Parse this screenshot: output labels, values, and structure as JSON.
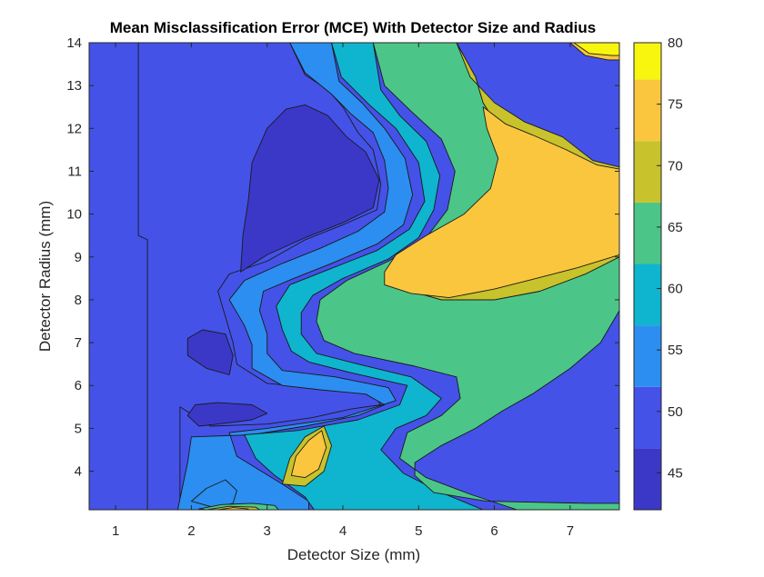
{
  "chart_data": {
    "type": "heatmap",
    "subtype": "filled-contour",
    "title": "Mean Misclassification Error (MCE) With Detector Size and Radius",
    "xlabel": "Detector Size (mm)",
    "ylabel": "Detector Radius (mm)",
    "xlim": [
      0.65,
      7.65
    ],
    "ylim": [
      3.1,
      14.0
    ],
    "x_ticks": [
      1,
      2,
      3,
      4,
      5,
      6,
      7
    ],
    "y_ticks": [
      4,
      5,
      6,
      7,
      8,
      9,
      10,
      11,
      12,
      13,
      14
    ],
    "colorbar": {
      "colormap": "parula",
      "range": [
        42,
        80
      ],
      "ticks": [
        45,
        50,
        55,
        60,
        65,
        70,
        75,
        80
      ]
    },
    "contour_levels": [
      42,
      47,
      52,
      57,
      62,
      67,
      72,
      77,
      80
    ],
    "level_colors": [
      "#3b38c8",
      "#4452e8",
      "#2c8ef0",
      "#0fb5ce",
      "#4bc688",
      "#c8c22c",
      "#fac63e",
      "#f8f60e"
    ],
    "regions": [
      {
        "level": 1,
        "points": [
          [
            1.3,
            14
          ],
          [
            1.3,
            9.5
          ],
          [
            1.42,
            9.4
          ],
          [
            1.42,
            3.1
          ],
          [
            1.85,
            3.1
          ],
          [
            1.85,
            5.5
          ],
          [
            2.25,
            5.05
          ],
          [
            3.0,
            5.1
          ],
          [
            3.6,
            5.25
          ],
          [
            4.1,
            5.45
          ],
          [
            4.5,
            5.55
          ],
          [
            4.4,
            5.8
          ],
          [
            3.6,
            5.95
          ],
          [
            3.0,
            6.05
          ],
          [
            2.6,
            6.5
          ],
          [
            2.55,
            7.0
          ],
          [
            2.45,
            7.6
          ],
          [
            2.35,
            8.2
          ],
          [
            2.5,
            8.6
          ],
          [
            3.0,
            8.9
          ],
          [
            3.5,
            9.4
          ],
          [
            4.0,
            9.75
          ],
          [
            4.45,
            10.1
          ],
          [
            4.5,
            10.7
          ],
          [
            4.4,
            11.5
          ],
          [
            4.2,
            11.9
          ],
          [
            4.0,
            12.5
          ],
          [
            3.8,
            12.9
          ],
          [
            3.5,
            13.25
          ],
          [
            3.3,
            14
          ]
        ]
      },
      {
        "level": 2,
        "points": [
          [
            3.3,
            14
          ],
          [
            3.5,
            13.3
          ],
          [
            3.85,
            12.8
          ],
          [
            4.1,
            12.35
          ],
          [
            4.4,
            11.9
          ],
          [
            4.55,
            11.25
          ],
          [
            4.6,
            10.6
          ],
          [
            4.55,
            10.05
          ],
          [
            4.2,
            9.6
          ],
          [
            3.7,
            9.2
          ],
          [
            3.2,
            8.85
          ],
          [
            2.7,
            8.45
          ],
          [
            2.5,
            8.0
          ],
          [
            2.7,
            7.4
          ],
          [
            2.8,
            6.95
          ],
          [
            2.8,
            6.4
          ],
          [
            3.2,
            6.0
          ],
          [
            3.7,
            5.9
          ],
          [
            4.3,
            5.8
          ],
          [
            4.55,
            5.55
          ],
          [
            4.2,
            5.3
          ],
          [
            3.5,
            5.05
          ],
          [
            2.8,
            4.85
          ],
          [
            2.0,
            4.8
          ],
          [
            1.95,
            4.2
          ],
          [
            1.82,
            3.1
          ],
          [
            3.55,
            3.1
          ],
          [
            3.55,
            3.3
          ],
          [
            3.2,
            3.7
          ],
          [
            2.6,
            4.35
          ],
          [
            2.5,
            4.9
          ],
          [
            3.0,
            5.0
          ],
          [
            4.0,
            5.25
          ],
          [
            4.7,
            5.65
          ],
          [
            4.6,
            5.95
          ],
          [
            3.9,
            6.2
          ],
          [
            3.2,
            6.35
          ],
          [
            3.0,
            6.75
          ],
          [
            3.0,
            7.2
          ],
          [
            2.9,
            7.75
          ],
          [
            2.95,
            8.2
          ],
          [
            3.35,
            8.5
          ],
          [
            3.85,
            8.85
          ],
          [
            4.45,
            9.3
          ],
          [
            4.8,
            9.75
          ],
          [
            4.92,
            10.45
          ],
          [
            4.82,
            11.3
          ],
          [
            4.55,
            12.0
          ],
          [
            4.25,
            12.6
          ],
          [
            3.95,
            13.1
          ],
          [
            3.85,
            14
          ]
        ]
      },
      {
        "level": 3,
        "points": [
          [
            3.85,
            14
          ],
          [
            3.98,
            13.2
          ],
          [
            4.35,
            12.55
          ],
          [
            4.7,
            12.0
          ],
          [
            5.0,
            11.2
          ],
          [
            5.08,
            10.3
          ],
          [
            4.88,
            9.65
          ],
          [
            4.45,
            9.15
          ],
          [
            3.8,
            8.7
          ],
          [
            3.3,
            8.35
          ],
          [
            3.12,
            7.85
          ],
          [
            3.2,
            7.3
          ],
          [
            3.32,
            6.8
          ],
          [
            3.55,
            6.55
          ],
          [
            4.1,
            6.3
          ],
          [
            4.85,
            6.0
          ],
          [
            4.75,
            5.55
          ],
          [
            4.2,
            5.2
          ],
          [
            3.4,
            4.95
          ],
          [
            2.7,
            4.85
          ],
          [
            2.85,
            4.3
          ],
          [
            3.1,
            3.9
          ],
          [
            3.5,
            3.4
          ],
          [
            3.62,
            3.1
          ],
          [
            5.85,
            3.1
          ],
          [
            5.3,
            3.5
          ],
          [
            4.8,
            3.95
          ],
          [
            4.5,
            4.5
          ],
          [
            4.7,
            5.0
          ],
          [
            5.1,
            5.3
          ],
          [
            5.3,
            5.7
          ],
          [
            4.9,
            6.2
          ],
          [
            4.2,
            6.5
          ],
          [
            3.65,
            6.75
          ],
          [
            3.45,
            7.2
          ],
          [
            3.45,
            7.7
          ],
          [
            3.6,
            8.1
          ],
          [
            4.0,
            8.5
          ],
          [
            4.6,
            8.95
          ],
          [
            5.0,
            9.45
          ],
          [
            5.2,
            10.1
          ],
          [
            5.28,
            10.9
          ],
          [
            5.1,
            11.7
          ],
          [
            4.75,
            12.3
          ],
          [
            4.5,
            12.9
          ],
          [
            4.4,
            14
          ]
        ]
      },
      {
        "level": 4,
        "points": [
          [
            4.4,
            14
          ],
          [
            4.55,
            13.0
          ],
          [
            4.9,
            12.4
          ],
          [
            5.3,
            11.75
          ],
          [
            5.48,
            11.0
          ],
          [
            5.38,
            10.1
          ],
          [
            5.1,
            9.45
          ],
          [
            4.6,
            8.9
          ],
          [
            4.05,
            8.45
          ],
          [
            3.7,
            8.0
          ],
          [
            3.65,
            7.5
          ],
          [
            3.75,
            7.05
          ],
          [
            4.15,
            6.75
          ],
          [
            4.95,
            6.45
          ],
          [
            5.5,
            6.2
          ],
          [
            5.55,
            5.7
          ],
          [
            5.3,
            5.3
          ],
          [
            4.85,
            4.9
          ],
          [
            4.75,
            4.3
          ],
          [
            5.1,
            3.85
          ],
          [
            5.7,
            3.45
          ],
          [
            6.3,
            3.1
          ],
          [
            7.65,
            3.1
          ],
          [
            7.65,
            3.25
          ],
          [
            7.2,
            3.25
          ],
          [
            5.9,
            3.3
          ],
          [
            5.2,
            3.5
          ],
          [
            4.95,
            3.9
          ],
          [
            4.95,
            4.2
          ],
          [
            5.3,
            4.6
          ],
          [
            5.75,
            5.0
          ],
          [
            6.1,
            5.4
          ],
          [
            6.5,
            5.8
          ],
          [
            7.0,
            6.4
          ],
          [
            7.4,
            7.0
          ],
          [
            7.65,
            7.75
          ],
          [
            7.65,
            9.0
          ],
          [
            7.2,
            8.6
          ],
          [
            6.6,
            8.2
          ],
          [
            6.0,
            8.0
          ],
          [
            5.3,
            8.0
          ],
          [
            4.8,
            8.25
          ],
          [
            4.65,
            8.7
          ],
          [
            5.0,
            9.2
          ],
          [
            5.5,
            9.75
          ],
          [
            6.0,
            10.4
          ],
          [
            6.2,
            11.1
          ],
          [
            6.1,
            11.9
          ],
          [
            5.85,
            12.6
          ],
          [
            5.75,
            13.2
          ],
          [
            5.5,
            14
          ]
        ]
      },
      {
        "level": 5,
        "points": [
          [
            5.5,
            14
          ],
          [
            5.68,
            13.2
          ],
          [
            6.0,
            12.6
          ],
          [
            6.4,
            12.15
          ],
          [
            6.9,
            11.8
          ],
          [
            7.3,
            11.25
          ],
          [
            7.65,
            11.1
          ],
          [
            7.65,
            9.0
          ],
          [
            7.2,
            8.6
          ],
          [
            6.6,
            8.2
          ],
          [
            6.0,
            8.0
          ],
          [
            5.3,
            8.0
          ],
          [
            4.8,
            8.25
          ],
          [
            4.65,
            8.7
          ],
          [
            5.0,
            9.2
          ],
          [
            5.5,
            9.75
          ],
          [
            6.0,
            10.4
          ],
          [
            6.2,
            11.1
          ],
          [
            6.1,
            11.9
          ],
          [
            5.85,
            12.6
          ],
          [
            5.75,
            13.2
          ],
          [
            5.5,
            14
          ]
        ]
      },
      {
        "level": 6,
        "points": [
          [
            4.55,
            8.35
          ],
          [
            4.9,
            8.15
          ],
          [
            5.4,
            8.05
          ],
          [
            6.0,
            8.25
          ],
          [
            6.55,
            8.5
          ],
          [
            7.1,
            8.75
          ],
          [
            7.65,
            9.05
          ],
          [
            7.65,
            11.05
          ],
          [
            7.35,
            11.15
          ],
          [
            6.95,
            11.5
          ],
          [
            6.5,
            11.85
          ],
          [
            6.15,
            12.1
          ],
          [
            5.85,
            12.5
          ],
          [
            5.9,
            12.0
          ],
          [
            6.05,
            11.3
          ],
          [
            5.95,
            10.6
          ],
          [
            5.6,
            10.0
          ],
          [
            5.1,
            9.5
          ],
          [
            4.7,
            9.05
          ],
          [
            4.55,
            8.65
          ]
        ]
      },
      {
        "level": 5,
        "points": [
          [
            3.2,
            3.7
          ],
          [
            3.3,
            4.3
          ],
          [
            3.5,
            4.8
          ],
          [
            3.75,
            5.05
          ],
          [
            3.85,
            4.6
          ],
          [
            3.75,
            4.0
          ],
          [
            3.5,
            3.65
          ]
        ]
      },
      {
        "level": 6,
        "points": [
          [
            3.32,
            3.9
          ],
          [
            3.38,
            4.35
          ],
          [
            3.55,
            4.72
          ],
          [
            3.72,
            4.95
          ],
          [
            3.78,
            4.55
          ],
          [
            3.68,
            4.05
          ],
          [
            3.5,
            3.85
          ]
        ]
      },
      {
        "level": 6,
        "points": [
          [
            7.0,
            14
          ],
          [
            7.2,
            13.7
          ],
          [
            7.5,
            13.6
          ],
          [
            7.65,
            13.6
          ],
          [
            7.65,
            14
          ]
        ]
      },
      {
        "level": 7,
        "points": [
          [
            7.05,
            14
          ],
          [
            7.25,
            13.75
          ],
          [
            7.55,
            13.7
          ],
          [
            7.65,
            13.7
          ],
          [
            7.65,
            14
          ]
        ]
      },
      {
        "level": 0,
        "points": [
          [
            2.1,
            5.05
          ],
          [
            2.35,
            5.1
          ],
          [
            2.8,
            5.2
          ],
          [
            3.0,
            5.35
          ],
          [
            2.8,
            5.55
          ],
          [
            2.35,
            5.6
          ],
          [
            2.05,
            5.55
          ],
          [
            1.95,
            5.3
          ]
        ]
      },
      {
        "level": 0,
        "points": [
          [
            1.95,
            6.7
          ],
          [
            2.2,
            6.4
          ],
          [
            2.5,
            6.25
          ],
          [
            2.55,
            6.7
          ],
          [
            2.45,
            7.2
          ],
          [
            2.15,
            7.3
          ],
          [
            1.95,
            7.1
          ]
        ]
      },
      {
        "level": 0,
        "points": [
          [
            2.65,
            8.65
          ],
          [
            3.0,
            9.05
          ],
          [
            3.5,
            9.45
          ],
          [
            4.0,
            9.8
          ],
          [
            4.4,
            10.15
          ],
          [
            4.48,
            10.8
          ],
          [
            4.3,
            11.45
          ],
          [
            4.05,
            11.8
          ],
          [
            3.8,
            12.3
          ],
          [
            3.5,
            12.55
          ],
          [
            3.25,
            12.45
          ],
          [
            3.0,
            12.0
          ],
          [
            2.8,
            11.2
          ],
          [
            2.75,
            10.3
          ],
          [
            2.68,
            9.5
          ]
        ]
      },
      {
        "level": 2,
        "points": [
          [
            2.0,
            3.3
          ],
          [
            2.2,
            3.6
          ],
          [
            2.45,
            3.8
          ],
          [
            2.6,
            3.55
          ],
          [
            2.55,
            3.25
          ],
          [
            2.3,
            3.15
          ]
        ]
      },
      {
        "level": 4,
        "points": [
          [
            2.1,
            3.12
          ],
          [
            2.4,
            3.22
          ],
          [
            2.8,
            3.25
          ],
          [
            3.1,
            3.2
          ],
          [
            3.15,
            3.1
          ],
          [
            2.2,
            3.1
          ]
        ]
      },
      {
        "level": 5,
        "points": [
          [
            2.2,
            3.1
          ],
          [
            2.5,
            3.18
          ],
          [
            2.85,
            3.16
          ],
          [
            2.9,
            3.1
          ]
        ]
      },
      {
        "level": 6,
        "points": [
          [
            2.35,
            3.1
          ],
          [
            2.55,
            3.15
          ],
          [
            2.75,
            3.12
          ],
          [
            2.75,
            3.1
          ]
        ]
      }
    ]
  }
}
